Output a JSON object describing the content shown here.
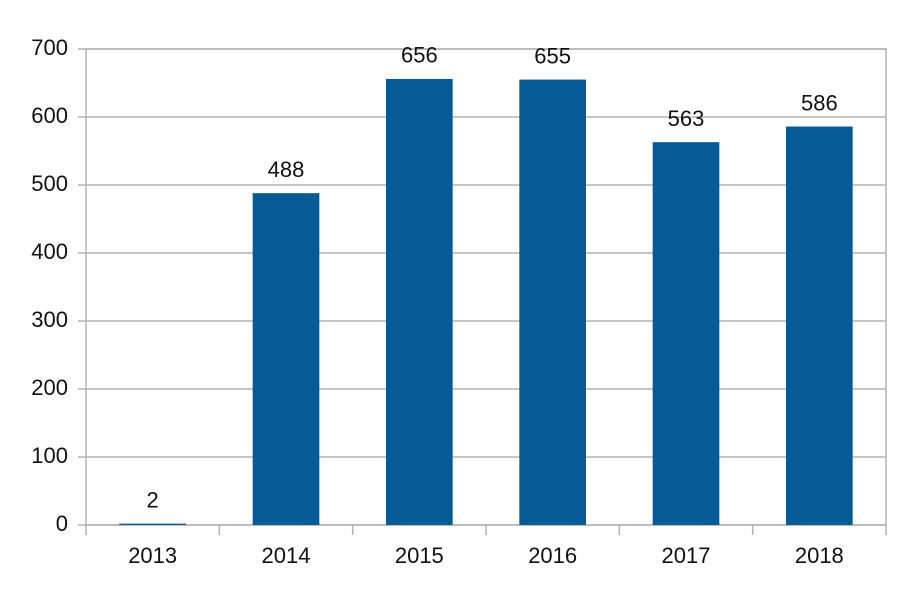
{
  "chart_data": {
    "type": "bar",
    "categories": [
      "2013",
      "2014",
      "2015",
      "2016",
      "2017",
      "2018"
    ],
    "values": [
      2,
      488,
      656,
      655,
      563,
      586
    ],
    "color": "#065a96",
    "ylim": [
      0,
      700
    ],
    "yticks": [
      0,
      100,
      200,
      300,
      400,
      500,
      600,
      700
    ],
    "grid": true,
    "data_labels": true
  }
}
